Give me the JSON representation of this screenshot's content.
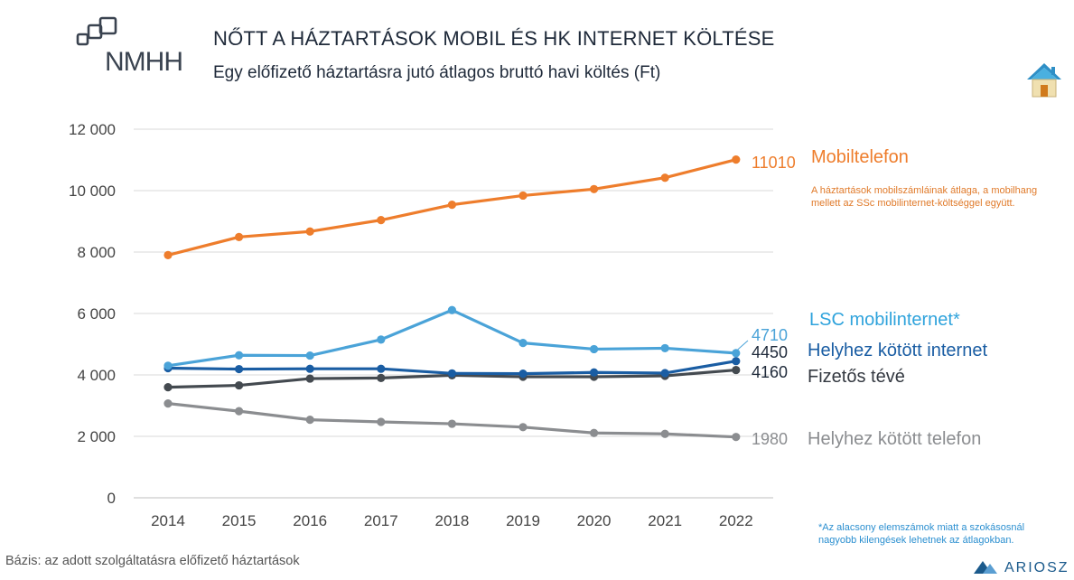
{
  "header": {
    "title": "NŐTT A HÁZTARTÁSOK MOBIL ÉS HK INTERNET KÖLTÉSE",
    "subtitle": "Egy előfizető háztartásra jutó átlagos bruttó havi költés (Ft)",
    "logo_text": "NMHH"
  },
  "footer": {
    "basis": "Bázis: az adott szolgáltatásra előfizető háztartások",
    "brand": "ARIOSZ"
  },
  "notes": {
    "mobile": "A háztartások mobilszámláinak átlaga, a mobilhang mellett az SSc mobilinternet-költséggel együtt.",
    "asterisk": "*Az alacsony elemszámok miatt a szokásosnál nagyobb kilengések lehetnek az átlagokban."
  },
  "chart_data": {
    "type": "line",
    "title": "Egy előfizető háztartásra jutó átlagos bruttó havi költés (Ft)",
    "xlabel": "",
    "ylabel": "",
    "ylim": [
      0,
      12000
    ],
    "yticks": [
      0,
      2000,
      4000,
      6000,
      8000,
      10000,
      12000
    ],
    "ytick_labels": [
      "0",
      "2 000",
      "4 000",
      "6 000",
      "8 000",
      "10 000",
      "12 000"
    ],
    "grid": true,
    "categories": [
      "2014",
      "2015",
      "2016",
      "2017",
      "2018",
      "2019",
      "2020",
      "2021",
      "2022"
    ],
    "series": [
      {
        "name": "Mobiltelefon",
        "color": "#ee7d2c",
        "end_label": "11010",
        "values": [
          7900,
          8490,
          8670,
          9040,
          9540,
          9840,
          10050,
          10420,
          11010
        ]
      },
      {
        "name": "LSC mobilinternet*",
        "color": "#4aa3d8",
        "end_label": "4710",
        "values": [
          4300,
          4640,
          4630,
          5150,
          6110,
          5040,
          4840,
          4870,
          4710
        ]
      },
      {
        "name": "Helyhez kötött internet",
        "color": "#1a5da3",
        "end_label": "4450",
        "values": [
          4220,
          4190,
          4200,
          4200,
          4050,
          4040,
          4080,
          4060,
          4450
        ]
      },
      {
        "name": "Fizetős tévé",
        "color": "#444a50",
        "end_label": "4160",
        "values": [
          3600,
          3660,
          3880,
          3900,
          3990,
          3940,
          3940,
          3970,
          4160
        ]
      },
      {
        "name": "Helyhez kötött telefon",
        "color": "#8b8d90",
        "end_label": "1980",
        "values": [
          3070,
          2820,
          2540,
          2470,
          2410,
          2300,
          2110,
          2080,
          1980
        ]
      }
    ]
  }
}
